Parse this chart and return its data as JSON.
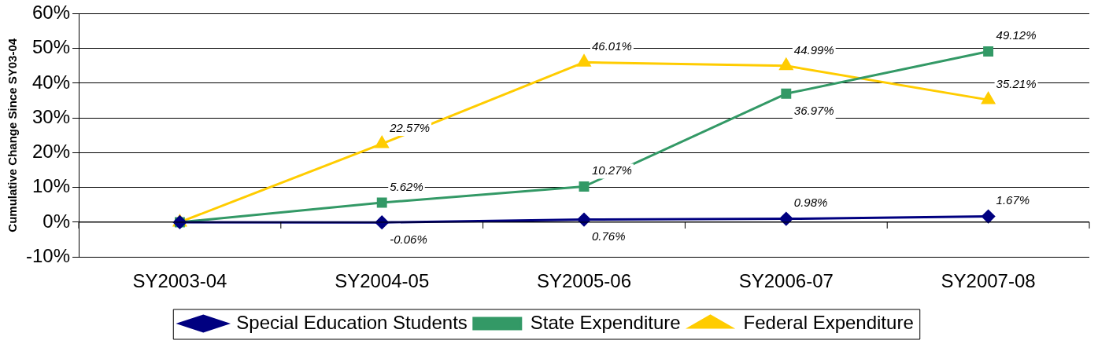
{
  "chart_data": {
    "type": "line",
    "ylabel": "Cumulative Change Since SY03-04",
    "categories": [
      "SY2003-04",
      "SY2004-05",
      "SY2005-06",
      "SY2006-07",
      "SY2007-08"
    ],
    "series": [
      {
        "name": "Special Education Students",
        "color": "#000080",
        "marker": "diamond",
        "values": [
          0,
          -0.06,
          0.76,
          0.98,
          1.67
        ],
        "value_labels": [
          null,
          "-0.06%",
          "0.76%",
          "0.98%",
          "1.67%"
        ]
      },
      {
        "name": "State Expenditure",
        "color": "#339966",
        "marker": "square",
        "values": [
          0,
          5.62,
          10.27,
          36.97,
          49.12
        ],
        "value_labels": [
          null,
          "5.62%",
          "10.27%",
          "36.97%",
          "49.12%"
        ]
      },
      {
        "name": "Federal Expenditure",
        "color": "#ffcc00",
        "marker": "triangle",
        "values": [
          0,
          22.57,
          46.01,
          44.99,
          35.21
        ],
        "value_labels": [
          null,
          "22.57%",
          "46.01%",
          "44.99%",
          "35.21%"
        ]
      }
    ],
    "ylim": [
      -10,
      60
    ],
    "yticks": [
      {
        "value": -10,
        "label": "-10%"
      },
      {
        "value": 0,
        "label": "0%"
      },
      {
        "value": 10,
        "label": "10%"
      },
      {
        "value": 20,
        "label": "20%"
      },
      {
        "value": 30,
        "label": "30%"
      },
      {
        "value": 40,
        "label": "40%"
      },
      {
        "value": 50,
        "label": "50%"
      },
      {
        "value": 60,
        "label": "60%"
      }
    ],
    "grid": "y",
    "legend": "bottom",
    "line_style": "solid"
  }
}
